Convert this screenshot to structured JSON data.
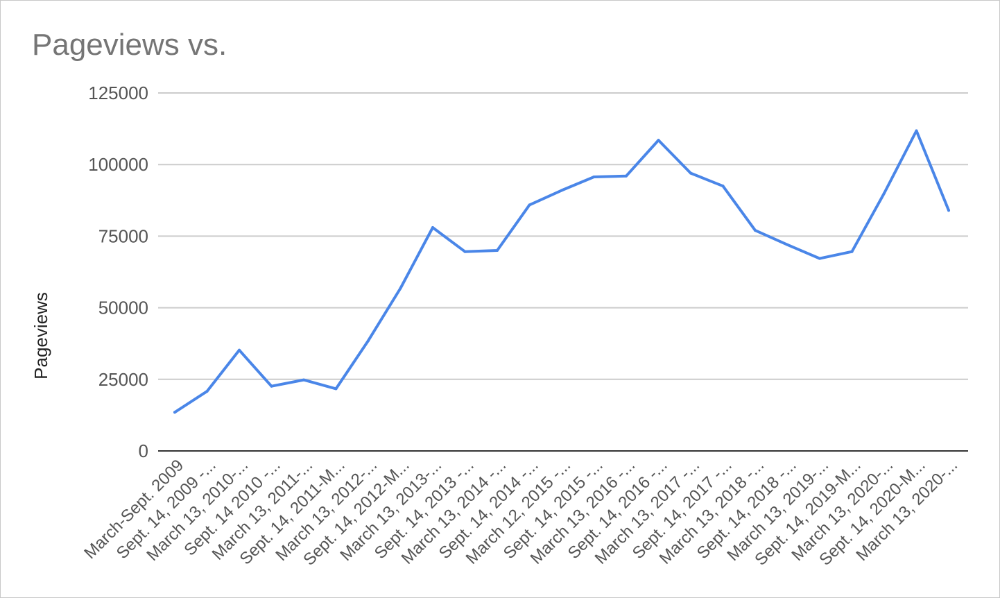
{
  "chart_data": {
    "type": "line",
    "title": "Pageviews vs.",
    "xlabel": "",
    "ylabel": "Pageviews",
    "ylim": [
      0,
      125000
    ],
    "yticks": [
      0,
      25000,
      50000,
      75000,
      100000,
      125000
    ],
    "ytick_labels": [
      "0",
      "25000",
      "50000",
      "75000",
      "100000",
      "125000"
    ],
    "grid": true,
    "legend": "none",
    "line_color": "#4a86e8",
    "categories": [
      "March-Sept. 2009",
      "Sept. 14, 2009 -...",
      "March 13, 2010-...",
      "Sept. 14 2010 -...",
      "March 13, 2011-...",
      "Sept. 14, 2011-M...",
      "March 13, 2012-...",
      "Sept. 14, 2012-M...",
      "March 13, 2013-...",
      "Sept. 14, 2013 -...",
      "March 13, 2014 -...",
      "Sept. 14, 2014 -...",
      "March 12, 2015 -...",
      "Sept. 14, 2015 -...",
      "March 13, 2016 -...",
      "Sept. 14, 2016 -...",
      "March 13, 2017 -...",
      "Sept. 14, 2017 -...",
      "March 13, 2018 -...",
      "Sept. 14, 2018 -...",
      "March 13, 2019-...",
      "Sept. 14, 2019-M...",
      "March 13, 2020-...",
      "Sept. 14, 2020-M...",
      "March 13, 2020-..."
    ],
    "series": [
      {
        "values": [
          13500,
          20800,
          35200,
          22600,
          24800,
          21700,
          38500,
          56800,
          78000,
          69600,
          70000,
          85900,
          91000,
          95700,
          96000,
          108500,
          97000,
          92500,
          77000,
          72000,
          67200,
          69600,
          90000,
          111800,
          84000
        ]
      }
    ]
  }
}
